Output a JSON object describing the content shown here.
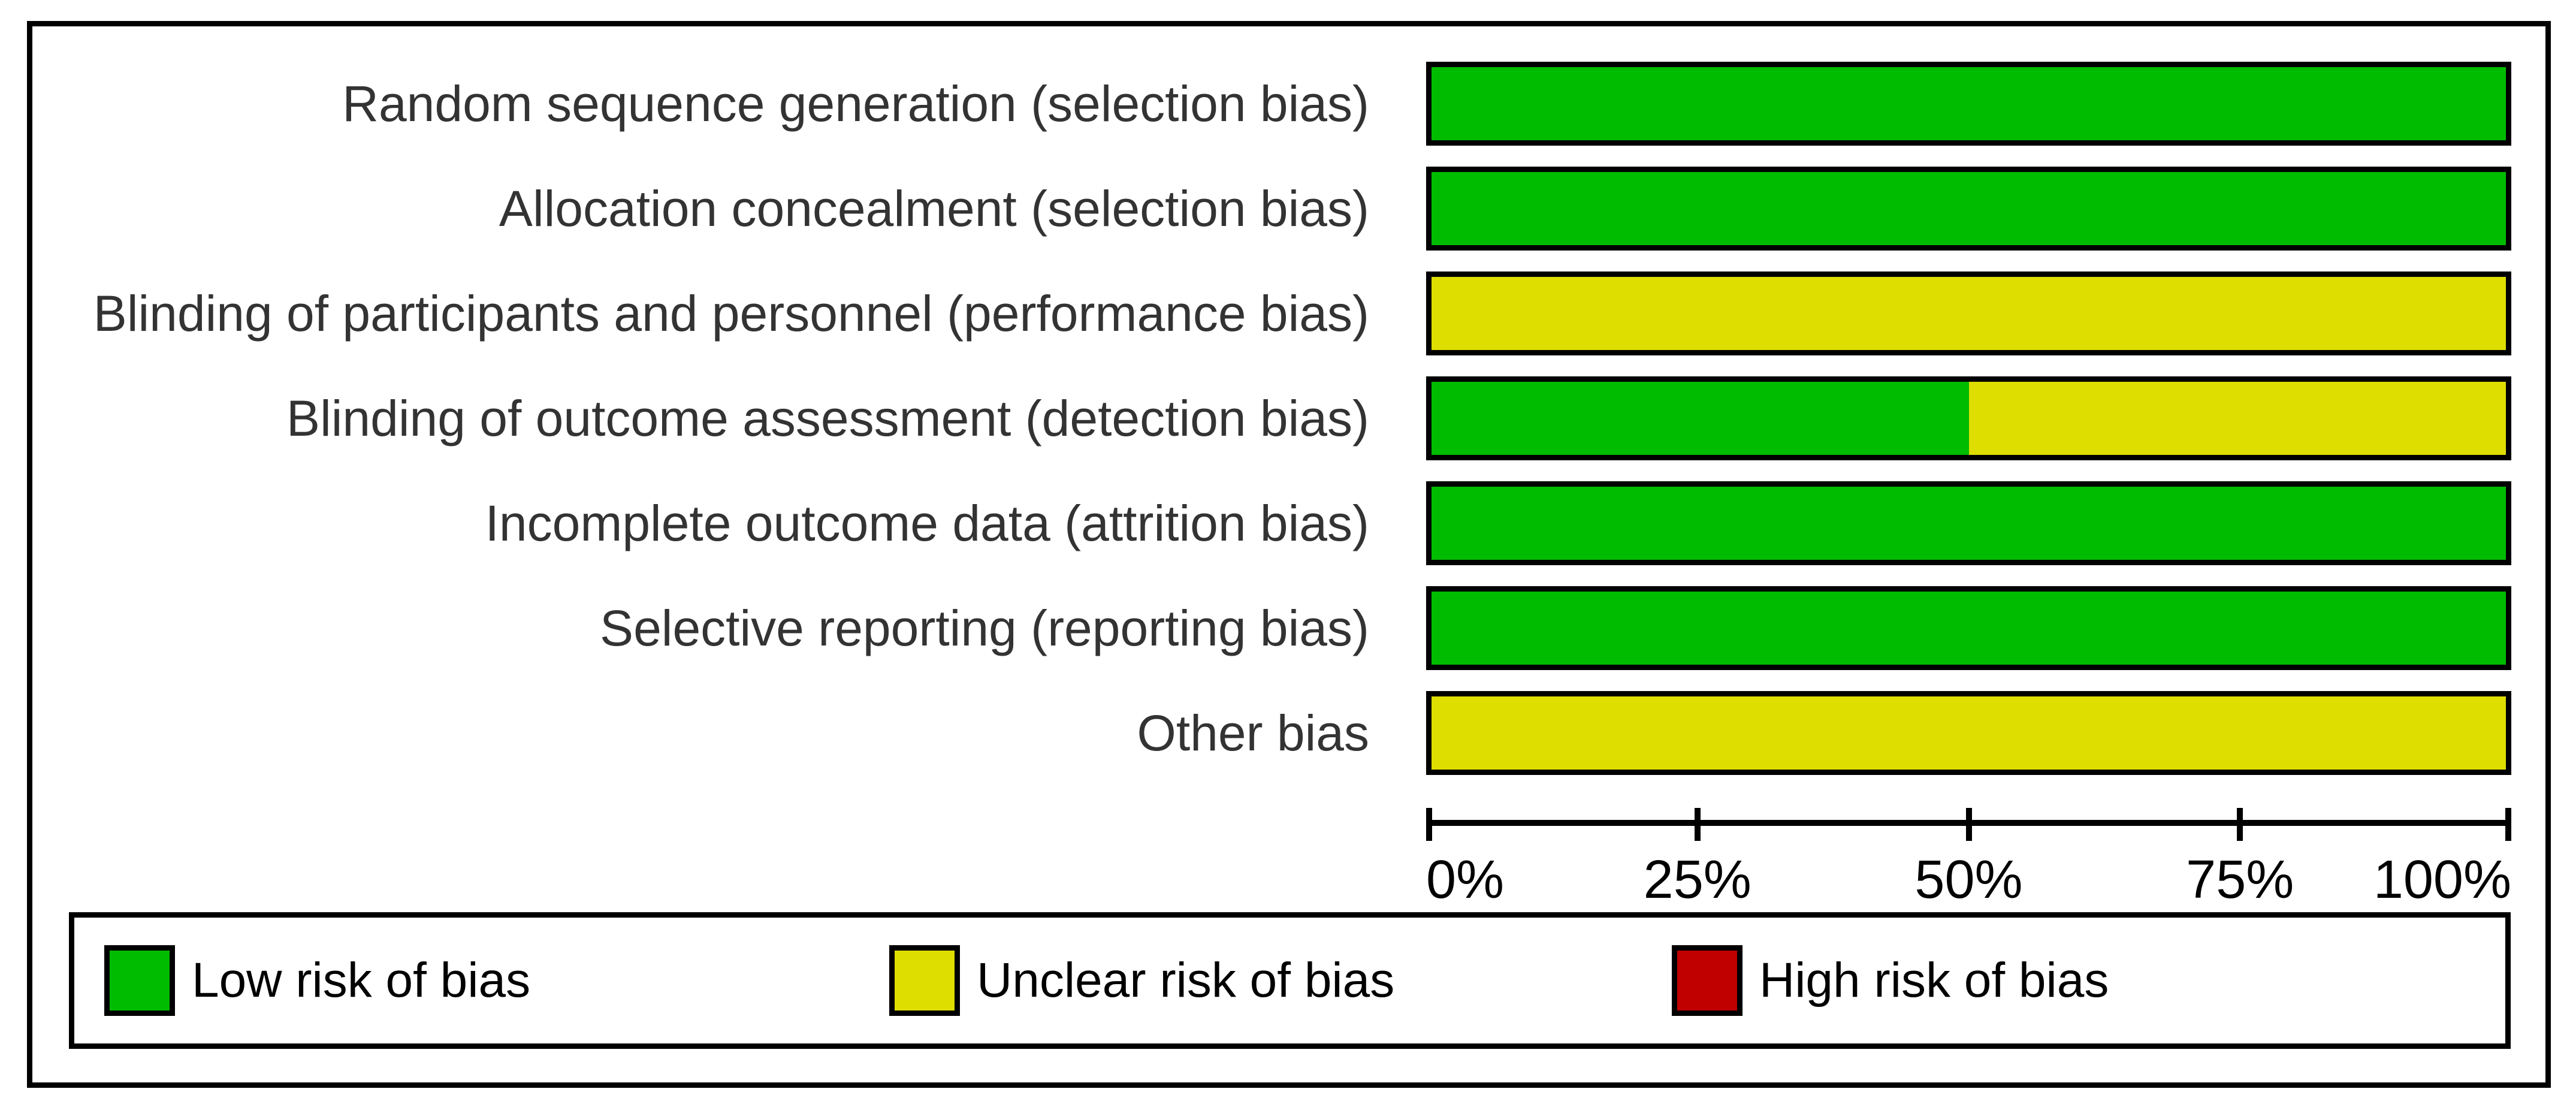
{
  "chart_data": {
    "type": "bar",
    "subtype": "horizontal_stacked_percent",
    "title": "",
    "categories": [
      "Random sequence generation (selection bias)",
      "Allocation concealment (selection bias)",
      "Blinding of participants and personnel (performance bias)",
      "Blinding of outcome assessment (detection bias)",
      "Incomplete outcome data (attrition bias)",
      "Selective reporting (reporting bias)",
      "Other bias"
    ],
    "series": [
      {
        "name": "Low risk of bias",
        "color": "#00BC00",
        "values": [
          100,
          100,
          0,
          50,
          100,
          100,
          0
        ]
      },
      {
        "name": "Unclear risk of bias",
        "color": "#DEDE00",
        "values": [
          0,
          0,
          100,
          50,
          0,
          0,
          100
        ]
      },
      {
        "name": "High risk of bias",
        "color": "#C00000",
        "values": [
          0,
          0,
          0,
          0,
          0,
          0,
          0
        ]
      }
    ],
    "x_axis": {
      "range": [
        0,
        100
      ],
      "unit": "percent",
      "tick_labels": [
        "0%",
        "25%",
        "50%",
        "75%",
        "100%"
      ],
      "grid": false
    },
    "legend": {
      "position": "bottom",
      "items": [
        {
          "label": "Low risk of bias",
          "color": "#00BC00"
        },
        {
          "label": "Unclear risk of bias",
          "color": "#DEDE00"
        },
        {
          "label": "High risk of bias",
          "color": "#C00000"
        }
      ]
    }
  }
}
